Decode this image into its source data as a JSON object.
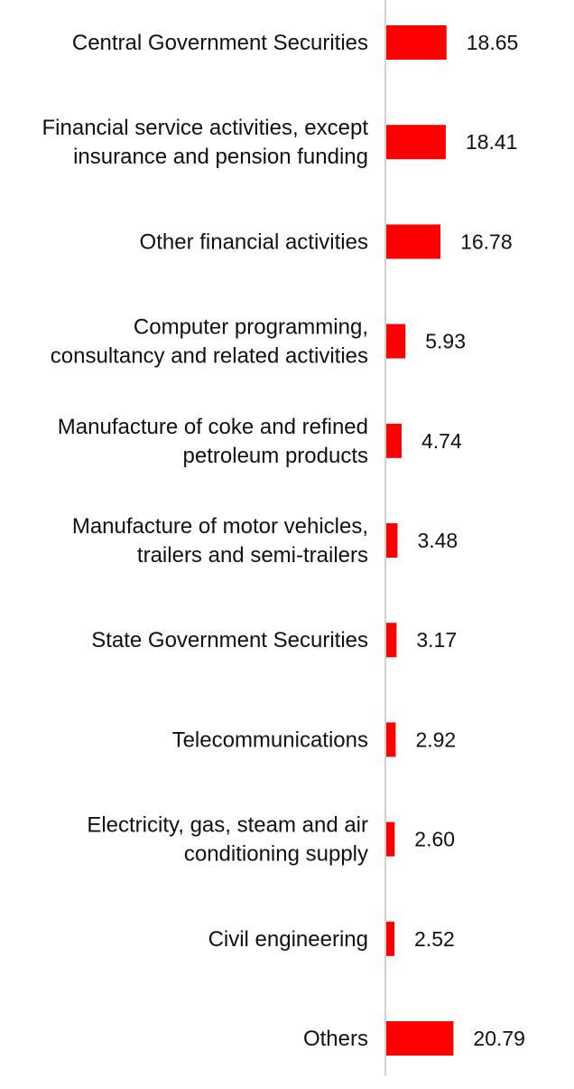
{
  "chart_data": {
    "type": "bar",
    "orientation": "horizontal",
    "categories": [
      [
        "Central Government Securities"
      ],
      [
        "Financial service activities, except",
        "insurance and pension funding"
      ],
      [
        "Other financial activities"
      ],
      [
        "Computer programming,",
        "consultancy and related activities"
      ],
      [
        "Manufacture of coke and refined",
        "petroleum products"
      ],
      [
        "Manufacture of motor vehicles,",
        "trailers and semi-trailers"
      ],
      [
        "State Government Securities"
      ],
      [
        "Telecommunications"
      ],
      [
        "Electricity, gas, steam and air",
        "conditioning supply"
      ],
      [
        "Civil engineering"
      ],
      [
        "Others"
      ]
    ],
    "values": [
      18.65,
      18.41,
      16.78,
      5.93,
      4.74,
      3.48,
      3.17,
      2.92,
      2.6,
      2.52,
      20.79
    ],
    "value_labels": [
      "18.65",
      "18.41",
      "16.78",
      "5.93",
      "4.74",
      "3.48",
      "3.17",
      "2.92",
      "2.60",
      "2.52",
      "20.79"
    ],
    "bar_color": "#ff0000",
    "axis_color": "#d0d0d0",
    "grid": false,
    "legend": "none"
  }
}
